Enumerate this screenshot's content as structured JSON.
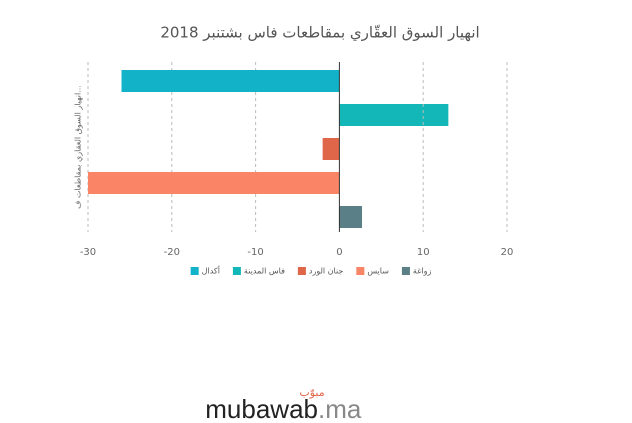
{
  "chart_data": {
    "type": "bar",
    "orientation": "horizontal",
    "title": "انهيار السوق العقّاري بمقاطعات فاس بشتنبر 2018",
    "ylabel": "انهيار السوق العقاري بمقاطعات ف...",
    "series": [
      {
        "name": "أكدال",
        "color": "#12b2c9",
        "values": [
          -26
        ]
      },
      {
        "name": "فاس المدينة",
        "color": "#14b7b8",
        "values": [
          13
        ]
      },
      {
        "name": "جنان الورد",
        "color": "#e0664a",
        "values": [
          -2
        ]
      },
      {
        "name": "سايس",
        "color": "#fa8466",
        "values": [
          -30
        ]
      },
      {
        "name": "زواغة",
        "color": "#5a7f86",
        "values": [
          2.7
        ]
      }
    ],
    "xlim": [
      -30,
      20
    ],
    "xticks": [
      -30,
      -20,
      -10,
      0,
      10,
      20
    ],
    "grid": true,
    "legend": "bottom"
  },
  "footer": {
    "logo": "mubawab",
    "suffix": ".ma",
    "arabic": "مبوّب"
  }
}
